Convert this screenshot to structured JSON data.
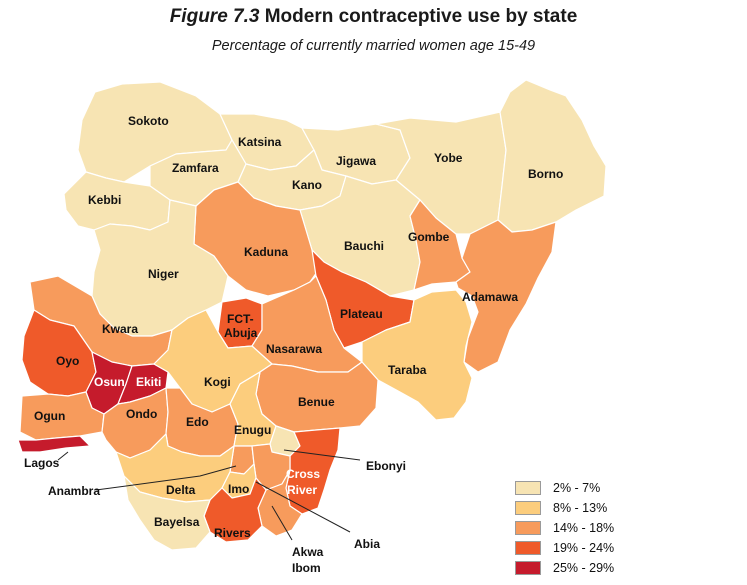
{
  "figure": {
    "number": "Figure 7.3",
    "title": "Modern contraceptive use by state",
    "subtitle": "Percentage of currently married women age 15-49"
  },
  "colors": {
    "class1": "#f7e4b3",
    "class2": "#fccd7d",
    "class3": "#f79b5c",
    "class4": "#ef5a2a",
    "class5": "#c51b2c",
    "border": "#ffffff"
  },
  "legend": [
    {
      "label": "2% - 7%",
      "class": "class1"
    },
    {
      "label": "8% - 13%",
      "class": "class2"
    },
    {
      "label": "14% - 18%",
      "class": "class3"
    },
    {
      "label": "19% - 24%",
      "class": "class4"
    },
    {
      "label": "25% - 29%",
      "class": "class5"
    }
  ],
  "states": {
    "sokoto": {
      "name": "Sokoto",
      "class": "class1"
    },
    "katsina": {
      "name": "Katsina",
      "class": "class1"
    },
    "zamfara": {
      "name": "Zamfara",
      "class": "class1"
    },
    "jigawa": {
      "name": "Jigawa",
      "class": "class1"
    },
    "yobe": {
      "name": "Yobe",
      "class": "class1"
    },
    "borno": {
      "name": "Borno",
      "class": "class1"
    },
    "kano": {
      "name": "Kano",
      "class": "class1"
    },
    "kebbi": {
      "name": "Kebbi",
      "class": "class1"
    },
    "gombe": {
      "name": "Gombe",
      "class": "class3"
    },
    "kaduna": {
      "name": "Kaduna",
      "class": "class3"
    },
    "bauchi": {
      "name": "Bauchi",
      "class": "class1"
    },
    "niger": {
      "name": "Niger",
      "class": "class1"
    },
    "adamawa": {
      "name": "Adamawa",
      "class": "class3"
    },
    "plateau": {
      "name": "Plateau",
      "class": "class4"
    },
    "fct": {
      "name_line1": "FCT-",
      "name_line2": "Abuja",
      "class": "class4"
    },
    "kwara": {
      "name": "Kwara",
      "class": "class3"
    },
    "nasarawa": {
      "name": "Nasarawa",
      "class": "class3"
    },
    "oyo": {
      "name": "Oyo",
      "class": "class4"
    },
    "taraba": {
      "name": "Taraba",
      "class": "class2"
    },
    "osun": {
      "name": "Osun",
      "class": "class5"
    },
    "ekiti": {
      "name": "Ekiti",
      "class": "class5"
    },
    "kogi": {
      "name": "Kogi",
      "class": "class2"
    },
    "benue": {
      "name": "Benue",
      "class": "class3"
    },
    "ogun": {
      "name": "Ogun",
      "class": "class3"
    },
    "ondo": {
      "name": "Ondo",
      "class": "class3"
    },
    "edo": {
      "name": "Edo",
      "class": "class3"
    },
    "enugu": {
      "name": "Enugu",
      "class": "class2"
    },
    "ebonyi": {
      "name": "Ebonyi",
      "class": "class1"
    },
    "lagos": {
      "name": "Lagos",
      "class": "class5"
    },
    "anambra": {
      "name": "Anambra",
      "class": "class3"
    },
    "delta": {
      "name": "Delta",
      "class": "class2"
    },
    "imo": {
      "name": "Imo",
      "class": "class2"
    },
    "cross_river": {
      "name_line1": "Cross",
      "name_line2": "River",
      "class": "class4"
    },
    "abia": {
      "name": "Abia",
      "class": "class3"
    },
    "bayelsa": {
      "name": "Bayelsa",
      "class": "class1"
    },
    "rivers": {
      "name": "Rivers",
      "class": "class4"
    },
    "akwa_ibom": {
      "name_line1": "Akwa",
      "name_line2": "Ibom",
      "class": "class3"
    }
  }
}
